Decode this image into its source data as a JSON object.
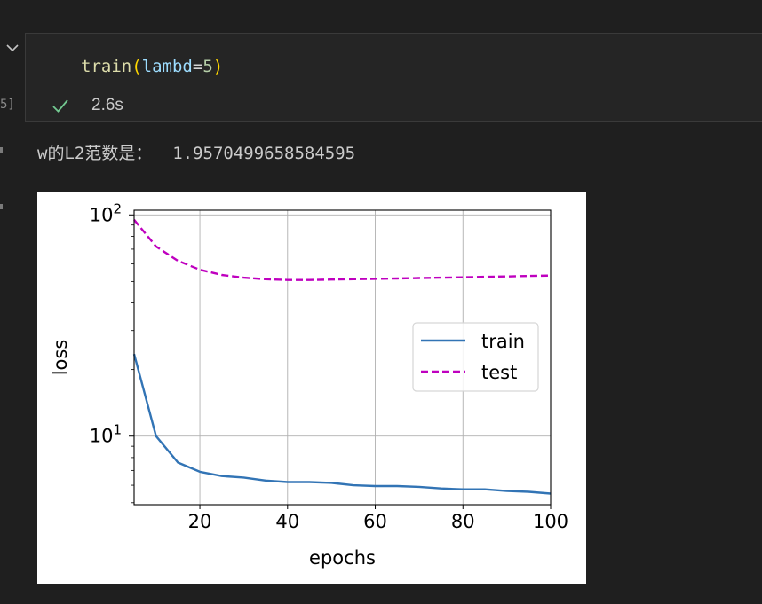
{
  "cell": {
    "execution_count": "5]",
    "code": {
      "fn": "train",
      "open": "(",
      "param": "lambd",
      "op": "=",
      "value": "5",
      "close": ")"
    },
    "status": {
      "icon": "check-icon",
      "duration": "2.6s",
      "color": "#73c991"
    }
  },
  "output": {
    "text": "w的L2范数是：  1.9570499658584595"
  },
  "chart_data": {
    "type": "line",
    "xlabel": "epochs",
    "ylabel": "loss",
    "yscale": "log",
    "xlim": [
      5,
      100
    ],
    "ylim": [
      4.9,
      105
    ],
    "xticks": [
      20,
      40,
      60,
      80,
      100
    ],
    "yticks": [
      10,
      100
    ],
    "ytick_labels": [
      {
        "base": "10",
        "exp": "1"
      },
      {
        "base": "10",
        "exp": "2"
      }
    ],
    "grid": true,
    "legend_position": "center-right",
    "x": [
      5,
      10,
      15,
      20,
      25,
      30,
      35,
      40,
      45,
      50,
      55,
      60,
      65,
      70,
      75,
      80,
      85,
      90,
      95,
      100
    ],
    "series": [
      {
        "name": "train",
        "color": "#3274b5",
        "style": "solid",
        "values": [
          23.5,
          10.0,
          7.6,
          6.9,
          6.6,
          6.5,
          6.3,
          6.2,
          6.2,
          6.15,
          6.0,
          5.95,
          5.95,
          5.9,
          5.8,
          5.75,
          5.75,
          5.65,
          5.6,
          5.5
        ]
      },
      {
        "name": "test",
        "color": "#bf00bf",
        "style": "dashed",
        "values": [
          95,
          72,
          62,
          56.5,
          53.5,
          52,
          51.2,
          50.8,
          50.8,
          51,
          51.2,
          51.4,
          51.6,
          51.8,
          52,
          52.2,
          52.5,
          52.7,
          53,
          53.2
        ]
      }
    ]
  }
}
